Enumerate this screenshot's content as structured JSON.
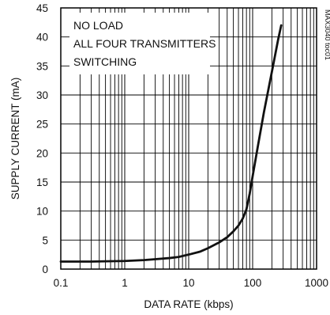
{
  "chart_data": {
    "type": "line",
    "xlabel": "DATA RATE (kbps)",
    "ylabel": "SUPPLY CURRENT (mA)",
    "x_scale": "log",
    "xlim": [
      0.1,
      1000
    ],
    "ylim": [
      0,
      45
    ],
    "x_ticks": [
      0.1,
      1,
      10,
      100,
      1000
    ],
    "x_tick_labels": [
      "0.1",
      "1",
      "10",
      "100",
      "1000"
    ],
    "y_ticks": [
      0,
      5,
      10,
      15,
      20,
      25,
      30,
      35,
      40,
      45
    ],
    "y_tick_labels": [
      "0",
      "5",
      "10",
      "15",
      "20",
      "25",
      "30",
      "35",
      "40",
      "45"
    ],
    "grid": true,
    "annotations": [
      "NO LOAD",
      "ALL FOUR TRANSMITTERS",
      "SWITCHING"
    ],
    "figure_code": "MAX3040 toc01",
    "series": [
      {
        "x": [
          0.1,
          0.3,
          1,
          2,
          3,
          5,
          7,
          10,
          15,
          20,
          30,
          40,
          50,
          60,
          70,
          80,
          90,
          100,
          120,
          150,
          200,
          250,
          280
        ],
        "y": [
          1.3,
          1.3,
          1.4,
          1.55,
          1.7,
          1.9,
          2.1,
          2.5,
          3.0,
          3.6,
          4.6,
          5.5,
          6.5,
          7.5,
          8.7,
          10.3,
          13.0,
          16.0,
          21.0,
          27.0,
          34.0,
          39.5,
          42.0
        ]
      }
    ]
  }
}
